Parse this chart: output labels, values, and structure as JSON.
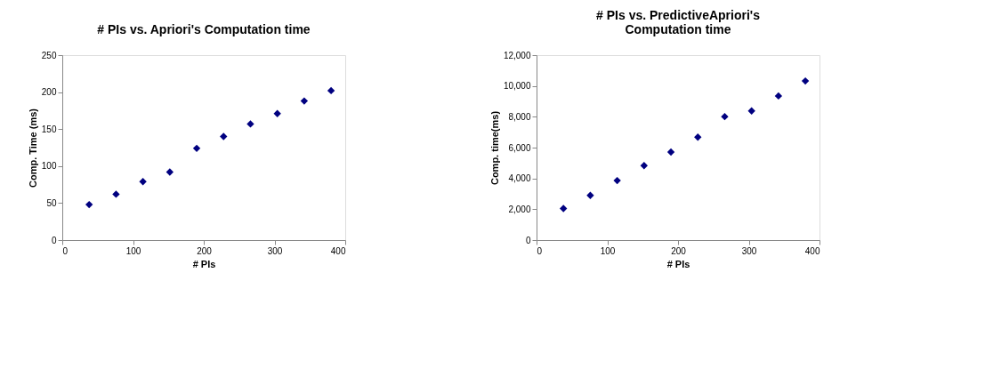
{
  "chart_data": [
    {
      "type": "scatter",
      "title": "# PIs vs. Apriori's Computation time",
      "xlabel": "# PIs",
      "ylabel": "Comp. Time (ms)",
      "x": [
        38,
        76,
        114,
        152,
        190,
        228,
        266,
        304,
        342,
        380
      ],
      "series": [
        {
          "color": "#000080",
          "values": [
            48,
            62,
            79,
            92,
            124,
            140,
            157,
            171,
            188,
            202
          ]
        }
      ],
      "xlim": [
        0,
        400
      ],
      "xticks": [
        0,
        100,
        200,
        300,
        400
      ],
      "ylim": [
        0,
        250
      ],
      "yticks": [
        0,
        50,
        100,
        150,
        200,
        250
      ],
      "marker": "diamond",
      "grid": false,
      "legend": false
    },
    {
      "type": "scatter",
      "title": "# PIs vs. PredictiveApriori's\nComputation time",
      "xlabel": "# PIs",
      "ylabel": "Comp. time(ms)",
      "x": [
        38,
        76,
        114,
        152,
        190,
        228,
        266,
        304,
        342,
        380
      ],
      "series": [
        {
          "color": "#000080",
          "values": [
            2050,
            2900,
            3860,
            4830,
            5710,
            6680,
            8010,
            8380,
            9350,
            10320
          ]
        }
      ],
      "xlim": [
        0,
        400
      ],
      "xticks": [
        0,
        100,
        200,
        300,
        400
      ],
      "ylim": [
        0,
        12000
      ],
      "yticks": [
        0,
        {
          "value": 2000,
          "label": "2,000"
        },
        {
          "value": 4000,
          "label": "4,000"
        },
        {
          "value": 6000,
          "label": "6,000"
        },
        {
          "value": 8000,
          "label": "8,000"
        },
        {
          "value": 10000,
          "label": "10,000"
        },
        {
          "value": 12000,
          "label": "12,000"
        }
      ],
      "marker": "diamond",
      "grid": false,
      "legend": false
    }
  ]
}
